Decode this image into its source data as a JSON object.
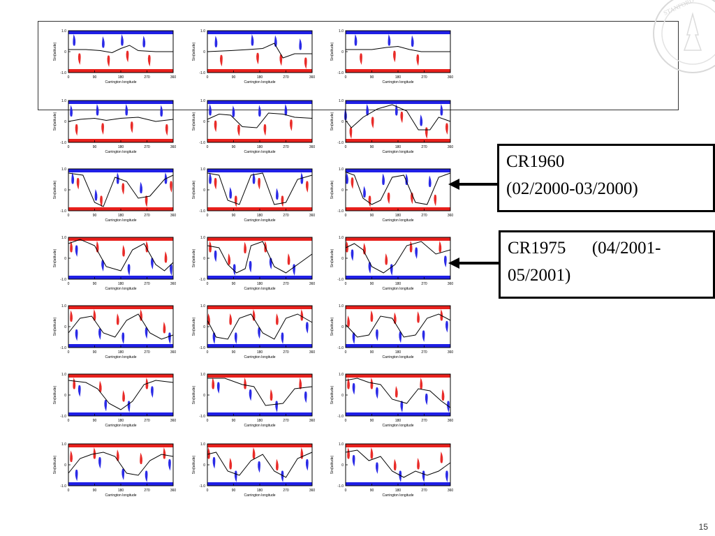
{
  "slide": {
    "page_number": "15"
  },
  "callouts": [
    {
      "line1": "CR1960",
      "line2": "(02/2000-03/2000)"
    },
    {
      "line1": "CR1975      (04/2001-",
      "line2": "05/2001)"
    }
  ],
  "colors": {
    "positive_polarity": "#1f1fe6",
    "negative_polarity": "#e8201c",
    "neutral_line": "#000000"
  },
  "chart_data": {
    "type": "grid-of-synoptic-maps",
    "rows": 7,
    "cols": 3,
    "xlabel": "Carrington longitude",
    "ylabel": "Sin(latitude)",
    "x_ticks": [
      "0",
      "90",
      "180",
      "270",
      "360"
    ],
    "y_ticks": [
      "1.0",
      "0",
      "-1.0"
    ],
    "xlim": [
      0,
      360
    ],
    "ylim": [
      -1,
      1
    ],
    "neutral_lines": [
      [
        [
          0,
          0.1
        ],
        [
          60,
          0.1
        ],
        [
          110,
          0.05
        ],
        [
          150,
          -0.05
        ],
        [
          180,
          0.15
        ],
        [
          210,
          0.3
        ],
        [
          240,
          0.05
        ],
        [
          300,
          0.0
        ],
        [
          360,
          0.0
        ]
      ],
      [
        [
          0,
          0.0
        ],
        [
          80,
          0.05
        ],
        [
          140,
          0.1
        ],
        [
          190,
          0.15
        ],
        [
          230,
          0.4
        ],
        [
          260,
          -0.3
        ],
        [
          300,
          -0.1
        ],
        [
          360,
          -0.1
        ]
      ],
      [
        [
          0,
          0.1
        ],
        [
          90,
          0.1
        ],
        [
          140,
          0.2
        ],
        [
          180,
          0.25
        ],
        [
          220,
          0.1
        ],
        [
          260,
          0.0
        ],
        [
          360,
          0.0
        ]
      ],
      [
        [
          0,
          0.0
        ],
        [
          40,
          0.1
        ],
        [
          90,
          0.15
        ],
        [
          130,
          0.05
        ],
        [
          180,
          0.15
        ],
        [
          240,
          0.2
        ],
        [
          300,
          0.0
        ],
        [
          360,
          0.1
        ]
      ],
      [
        [
          0,
          0.1
        ],
        [
          40,
          0.35
        ],
        [
          80,
          0.3
        ],
        [
          120,
          -0.25
        ],
        [
          170,
          -0.3
        ],
        [
          210,
          0.4
        ],
        [
          260,
          0.35
        ],
        [
          300,
          0.2
        ],
        [
          360,
          0.15
        ]
      ],
      [
        [
          0,
          0.05
        ],
        [
          20,
          -0.3
        ],
        [
          60,
          0.2
        ],
        [
          110,
          0.6
        ],
        [
          160,
          0.8
        ],
        [
          210,
          0.5
        ],
        [
          250,
          -0.4
        ],
        [
          290,
          -0.4
        ],
        [
          320,
          0.2
        ],
        [
          360,
          0.0
        ]
      ],
      [
        [
          0,
          0.8
        ],
        [
          50,
          0.7
        ],
        [
          90,
          -0.6
        ],
        [
          120,
          -0.8
        ],
        [
          160,
          0.6
        ],
        [
          200,
          0.4
        ],
        [
          240,
          -0.4
        ],
        [
          280,
          -0.3
        ],
        [
          330,
          0.5
        ],
        [
          360,
          0.7
        ]
      ],
      [
        [
          0,
          0.8
        ],
        [
          40,
          0.7
        ],
        [
          70,
          -0.5
        ],
        [
          110,
          -0.7
        ],
        [
          150,
          0.7
        ],
        [
          190,
          0.8
        ],
        [
          230,
          -0.7
        ],
        [
          270,
          -0.6
        ],
        [
          310,
          0.5
        ],
        [
          360,
          0.7
        ]
      ],
      [
        [
          0,
          0.85
        ],
        [
          30,
          0.7
        ],
        [
          60,
          -0.4
        ],
        [
          90,
          -0.7
        ],
        [
          120,
          -0.5
        ],
        [
          160,
          0.6
        ],
        [
          200,
          0.7
        ],
        [
          240,
          -0.6
        ],
        [
          280,
          -0.7
        ],
        [
          320,
          0.6
        ],
        [
          360,
          0.8
        ]
      ],
      [
        [
          0,
          0.7
        ],
        [
          40,
          0.9
        ],
        [
          90,
          0.6
        ],
        [
          130,
          -0.4
        ],
        [
          180,
          -0.6
        ],
        [
          220,
          0.4
        ],
        [
          260,
          0.7
        ],
        [
          300,
          -0.3
        ],
        [
          330,
          -0.6
        ],
        [
          360,
          -0.2
        ]
      ],
      [
        [
          0,
          0.6
        ],
        [
          40,
          0.5
        ],
        [
          70,
          -0.3
        ],
        [
          100,
          -0.7
        ],
        [
          130,
          -0.5
        ],
        [
          150,
          0.6
        ],
        [
          190,
          0.8
        ],
        [
          230,
          -0.4
        ],
        [
          270,
          -0.7
        ],
        [
          310,
          -0.3
        ],
        [
          360,
          0.2
        ]
      ],
      [
        [
          0,
          0.5
        ],
        [
          30,
          0.7
        ],
        [
          60,
          0.4
        ],
        [
          90,
          -0.4
        ],
        [
          130,
          -0.7
        ],
        [
          170,
          -0.3
        ],
        [
          210,
          0.6
        ],
        [
          260,
          0.8
        ],
        [
          310,
          0.2
        ],
        [
          360,
          0.4
        ]
      ],
      [
        [
          0,
          -0.3
        ],
        [
          40,
          0.4
        ],
        [
          80,
          0.5
        ],
        [
          120,
          -0.3
        ],
        [
          160,
          -0.5
        ],
        [
          200,
          0.3
        ],
        [
          240,
          0.6
        ],
        [
          280,
          -0.3
        ],
        [
          320,
          -0.6
        ],
        [
          360,
          -0.4
        ]
      ],
      [
        [
          0,
          0.3
        ],
        [
          30,
          -0.5
        ],
        [
          70,
          -0.6
        ],
        [
          110,
          0.4
        ],
        [
          150,
          0.6
        ],
        [
          190,
          -0.3
        ],
        [
          230,
          -0.6
        ],
        [
          270,
          0.4
        ],
        [
          310,
          0.6
        ],
        [
          360,
          0.2
        ]
      ],
      [
        [
          0,
          0.1
        ],
        [
          40,
          -0.5
        ],
        [
          80,
          -0.4
        ],
        [
          120,
          0.5
        ],
        [
          160,
          0.4
        ],
        [
          200,
          -0.5
        ],
        [
          240,
          -0.4
        ],
        [
          280,
          0.4
        ],
        [
          320,
          0.6
        ],
        [
          360,
          0.3
        ]
      ],
      [
        [
          0,
          0.7
        ],
        [
          60,
          0.6
        ],
        [
          100,
          0.3
        ],
        [
          140,
          -0.4
        ],
        [
          180,
          -0.7
        ],
        [
          220,
          -0.3
        ],
        [
          260,
          0.5
        ],
        [
          300,
          0.7
        ],
        [
          360,
          0.6
        ]
      ],
      [
        [
          0,
          0.8
        ],
        [
          60,
          0.8
        ],
        [
          120,
          0.5
        ],
        [
          160,
          0.4
        ],
        [
          200,
          -0.5
        ],
        [
          260,
          -0.4
        ],
        [
          300,
          0.3
        ],
        [
          360,
          0.4
        ]
      ],
      [
        [
          0,
          0.7
        ],
        [
          40,
          0.8
        ],
        [
          80,
          0.6
        ],
        [
          120,
          0.5
        ],
        [
          160,
          -0.2
        ],
        [
          210,
          -0.4
        ],
        [
          250,
          0.3
        ],
        [
          290,
          0.2
        ],
        [
          330,
          -0.3
        ],
        [
          360,
          -0.6
        ]
      ],
      [
        [
          0,
          -0.4
        ],
        [
          40,
          0.3
        ],
        [
          80,
          0.5
        ],
        [
          120,
          0.6
        ],
        [
          160,
          0.4
        ],
        [
          200,
          -0.4
        ],
        [
          240,
          -0.5
        ],
        [
          280,
          0.2
        ],
        [
          320,
          0.5
        ],
        [
          360,
          0.4
        ]
      ],
      [
        [
          0,
          0.5
        ],
        [
          30,
          0.6
        ],
        [
          70,
          -0.3
        ],
        [
          110,
          -0.5
        ],
        [
          150,
          0.2
        ],
        [
          190,
          0.5
        ],
        [
          230,
          -0.3
        ],
        [
          270,
          -0.6
        ],
        [
          310,
          0.3
        ],
        [
          360,
          0.6
        ]
      ],
      [
        [
          0,
          0.6
        ],
        [
          40,
          0.7
        ],
        [
          80,
          0.2
        ],
        [
          120,
          0.4
        ],
        [
          160,
          -0.3
        ],
        [
          200,
          -0.6
        ],
        [
          240,
          -0.3
        ],
        [
          280,
          -0.5
        ],
        [
          320,
          -0.3
        ],
        [
          360,
          0.1
        ]
      ]
    ]
  }
}
